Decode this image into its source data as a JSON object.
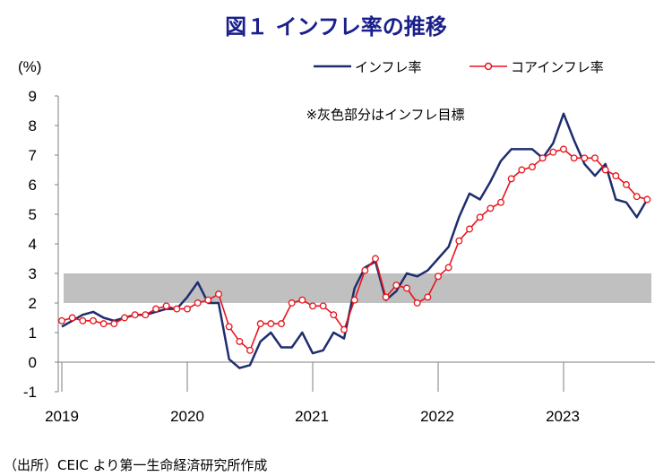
{
  "chart_data": {
    "type": "line",
    "title": "図１ インフレ率の推移",
    "ylabel": "(%)",
    "source": "（出所）CEIC より第一生命経済研究所作成",
    "annotation": "※灰色部分はインフレ目標",
    "target_band": [
      2,
      3
    ],
    "ylim": [
      -1,
      9
    ],
    "yticks": [
      "-1",
      "0",
      "1",
      "2",
      "3",
      "4",
      "5",
      "6",
      "7",
      "8",
      "9"
    ],
    "xtick_labels": [
      "2019",
      "2020",
      "2021",
      "2022",
      "2023"
    ],
    "x_start": "2019-01",
    "x_end": "2023-09",
    "legend_position": "top-right",
    "grid": false,
    "series": [
      {
        "name": "インフレ率",
        "color": "#1f2d6e",
        "marker": "none",
        "values": [
          1.2,
          1.4,
          1.6,
          1.7,
          1.5,
          1.4,
          1.5,
          1.6,
          1.6,
          1.7,
          1.8,
          1.8,
          2.2,
          2.7,
          2.0,
          2.0,
          0.1,
          -0.2,
          -0.1,
          0.7,
          1.0,
          0.5,
          0.5,
          1.0,
          0.3,
          0.4,
          1.0,
          0.8,
          2.5,
          3.2,
          3.4,
          2.1,
          2.4,
          3.0,
          2.9,
          3.1,
          3.5,
          3.9,
          4.9,
          5.7,
          5.5,
          6.1,
          6.8,
          7.2,
          7.2,
          7.2,
          6.9,
          7.4,
          8.4,
          7.5,
          6.7,
          6.3,
          6.7,
          5.5,
          5.4,
          4.9,
          5.5
        ]
      },
      {
        "name": "コアインフレ率",
        "color": "#e8141c",
        "marker": "circle",
        "values": [
          1.4,
          1.5,
          1.4,
          1.4,
          1.3,
          1.3,
          1.5,
          1.6,
          1.6,
          1.8,
          1.9,
          1.8,
          1.8,
          2.0,
          2.1,
          2.3,
          1.2,
          0.7,
          0.4,
          1.3,
          1.3,
          1.3,
          2.0,
          2.1,
          1.9,
          1.9,
          1.6,
          1.1,
          2.1,
          3.1,
          3.5,
          2.2,
          2.6,
          2.5,
          2.0,
          2.2,
          2.9,
          3.2,
          4.1,
          4.5,
          4.9,
          5.2,
          5.4,
          6.2,
          6.5,
          6.6,
          6.9,
          7.1,
          7.2,
          6.9,
          6.9,
          6.9,
          6.5,
          6.3,
          6.0,
          5.6,
          5.5
        ]
      }
    ]
  }
}
